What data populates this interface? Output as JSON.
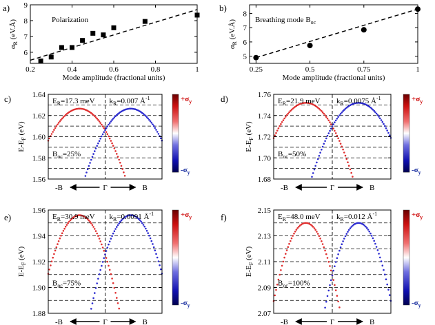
{
  "chart_data": [
    {
      "id": "a",
      "panel_label": "a)",
      "type": "scatter",
      "title": "Polarization",
      "xlabel": "Mode amplitude (fractional units)",
      "ylabel": "α_R (eV.Å)",
      "xlim": [
        0.2,
        1.0
      ],
      "ylim": [
        5.3,
        9.0
      ],
      "xticks": [
        0.2,
        0.4,
        0.6,
        0.8,
        1.0
      ],
      "xtick_labels": [
        "0.2",
        "0.4",
        "0.6",
        "0.8",
        "1"
      ],
      "yticks": [
        6,
        7,
        8,
        9
      ],
      "ytick_labels": [
        "6",
        "7",
        "8",
        "9"
      ],
      "marker": "square",
      "x": [
        0.25,
        0.3,
        0.35,
        0.4,
        0.45,
        0.5,
        0.55,
        0.6,
        0.75,
        1.0
      ],
      "y": [
        5.45,
        5.7,
        6.3,
        6.3,
        6.75,
        7.2,
        7.1,
        7.55,
        7.95,
        8.35
      ],
      "fit_line": {
        "x": [
          0.2,
          1.0
        ],
        "y": [
          5.5,
          8.7
        ]
      }
    },
    {
      "id": "b",
      "panel_label": "b)",
      "type": "scatter",
      "title": "Breathing mode B",
      "title_sub": "oc",
      "xlabel": "Mode amplitude (fractional units)",
      "ylabel": "α_R (eV.Å)",
      "xlim": [
        0.22,
        1.0
      ],
      "ylim": [
        4.5,
        8.6
      ],
      "xticks": [
        0.25,
        0.5,
        0.75,
        1.0
      ],
      "xtick_labels": [
        "0.25",
        "0.5",
        "0.75",
        "1"
      ],
      "yticks": [
        5,
        6,
        7,
        8
      ],
      "ytick_labels": [
        "5",
        "6",
        "7",
        "8"
      ],
      "marker": "circle",
      "x": [
        0.25,
        0.5,
        0.75,
        1.0
      ],
      "y": [
        4.9,
        5.75,
        6.85,
        8.3
      ],
      "fit_line": {
        "x": [
          0.25,
          1.0
        ],
        "y": [
          4.9,
          8.3
        ]
      }
    },
    {
      "id": "c",
      "panel_label": "c)",
      "type": "line",
      "ylabel": "E-E_F (eV)",
      "ylim": [
        1.56,
        1.64
      ],
      "yticks": [
        1.56,
        1.58,
        1.6,
        1.62,
        1.64
      ],
      "ytick_labels": [
        "1.56",
        "1.58",
        "1.60",
        "1.62",
        "1.64"
      ],
      "ER_label": "E_R=17.3 meV",
      "kR_label": "k_R=0.007 Å^-1",
      "boc_label": "B_oc=25%",
      "apex_energy": 1.6265,
      "apex_offset": 0.45,
      "curvature": 0.1,
      "xlabels": {
        "left": "-B",
        "center": "Γ",
        "right": "B"
      },
      "colorbar": {
        "top": "+σy",
        "bottom": "-σy"
      },
      "series": [
        {
          "name": "+σy",
          "color": "#e03030"
        },
        {
          "name": "-σy",
          "color": "#2c2cd0"
        }
      ]
    },
    {
      "id": "d",
      "panel_label": "d)",
      "type": "line",
      "ylabel": "E-E_F (eV)",
      "ylim": [
        1.68,
        1.76
      ],
      "yticks": [
        1.68,
        1.7,
        1.72,
        1.74,
        1.76
      ],
      "ytick_labels": [
        "1.68",
        "1.70",
        "1.72",
        "1.74",
        "1.76"
      ],
      "ER_label": "E_R=21.9 meV",
      "kR_label": "k_R=0.0075 Å^-1",
      "boc_label": "B_oc=50%",
      "apex_energy": 1.752,
      "apex_offset": 0.45,
      "curvature": 0.11,
      "xlabels": {
        "left": "-B",
        "center": "Γ",
        "right": "B"
      },
      "colorbar": {
        "top": "+σy",
        "bottom": "-σy"
      },
      "series": [
        {
          "name": "+σy",
          "color": "#e03030"
        },
        {
          "name": "-σy",
          "color": "#2c2cd0"
        }
      ]
    },
    {
      "id": "e",
      "panel_label": "e)",
      "type": "line",
      "ylabel": "E-E_F (eV)",
      "ylim": [
        1.88,
        1.96
      ],
      "yticks": [
        1.88,
        1.9,
        1.92,
        1.94,
        1.96
      ],
      "ytick_labels": [
        "1.88",
        "1.90",
        "1.92",
        "1.94",
        "1.96"
      ],
      "ER_label": "E_R=30.9 meV",
      "kR_label": "k_R=0.0091 Å^-1",
      "boc_label": "B_oc=75%",
      "apex_energy": 1.956,
      "apex_offset": 0.45,
      "curvature": 0.15,
      "xlabels": {
        "left": "-B",
        "center": "Γ",
        "right": "B"
      },
      "colorbar": {
        "top": "+σy",
        "bottom": "-σy"
      },
      "series": [
        {
          "name": "+σy",
          "color": "#e03030"
        },
        {
          "name": "-σy",
          "color": "#2c2cd0"
        }
      ]
    },
    {
      "id": "f",
      "panel_label": "f)",
      "type": "line",
      "ylabel": "E-E_F (eV)",
      "ylim": [
        2.07,
        2.15
      ],
      "yticks": [
        2.07,
        2.09,
        2.11,
        2.13,
        2.15
      ],
      "ytick_labels": [
        "2.07",
        "2.09",
        "2.11",
        "2.13",
        "2.15"
      ],
      "ER_label": "E_R=48.0 meV",
      "kR_label": "k_R=0.012 Å^-1",
      "boc_label": "B_oc=100%",
      "apex_energy": 2.14,
      "apex_offset": 0.45,
      "curvature": 0.2,
      "xlabels": {
        "left": "-B",
        "center": "Γ",
        "right": "B"
      },
      "colorbar": {
        "top": "+σy",
        "bottom": "-σy"
      },
      "series": [
        {
          "name": "+σy",
          "color": "#e03030"
        },
        {
          "name": "-σy",
          "color": "#2c2cd0"
        }
      ]
    }
  ]
}
